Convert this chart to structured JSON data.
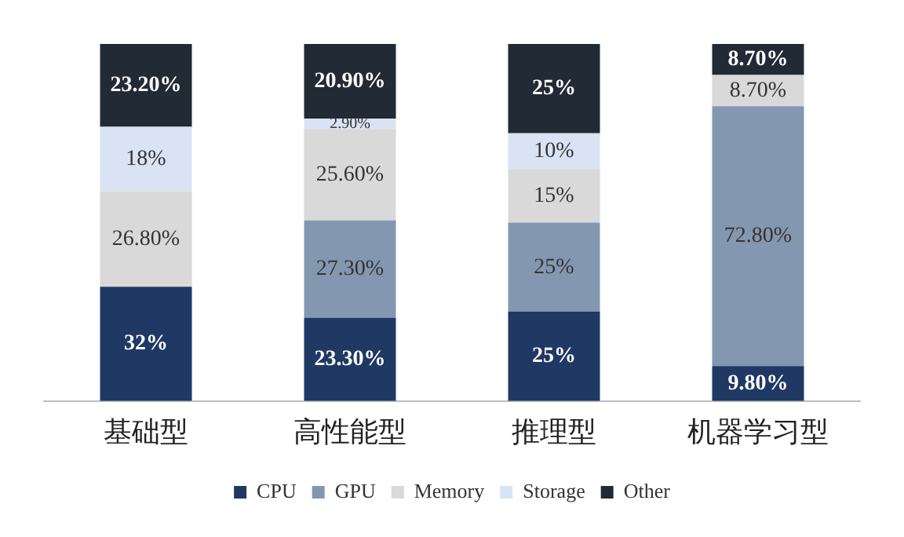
{
  "chart_data": {
    "type": "bar",
    "stacked": true,
    "categories": [
      "基础型",
      "高性能型",
      "推理型",
      "机器学习型"
    ],
    "ylim": [
      0,
      100
    ],
    "tick_labels": "x",
    "grid": false,
    "legend": "bottom",
    "series": [
      {
        "name": "CPU",
        "color": "#1f3864",
        "values": [
          32,
          23.3,
          25,
          9.8
        ],
        "value_labels": [
          "32%",
          "23.30%",
          "25%",
          "9.80%"
        ]
      },
      {
        "name": "GPU",
        "color": "#8497b0",
        "values": [
          null,
          27.3,
          25,
          72.8
        ],
        "value_labels": [
          null,
          "27.30%",
          "25%",
          "72.80%"
        ]
      },
      {
        "name": "Memory",
        "color": "#d9d9d9",
        "values": [
          26.8,
          25.6,
          15,
          8.7
        ],
        "value_labels": [
          "26.80%",
          "25.60%",
          "15%",
          "8.70%"
        ]
      },
      {
        "name": "Storage",
        "color": "#dae3f3",
        "values": [
          18,
          2.9,
          10,
          null
        ],
        "value_labels": [
          "18%",
          "2.90%",
          "10%",
          null
        ]
      },
      {
        "name": "Other",
        "color": "#222a35",
        "values": [
          23.2,
          20.9,
          25,
          8.7
        ],
        "value_labels": [
          "23.20%",
          "20.90%",
          "25%",
          "8.70%"
        ]
      }
    ]
  }
}
